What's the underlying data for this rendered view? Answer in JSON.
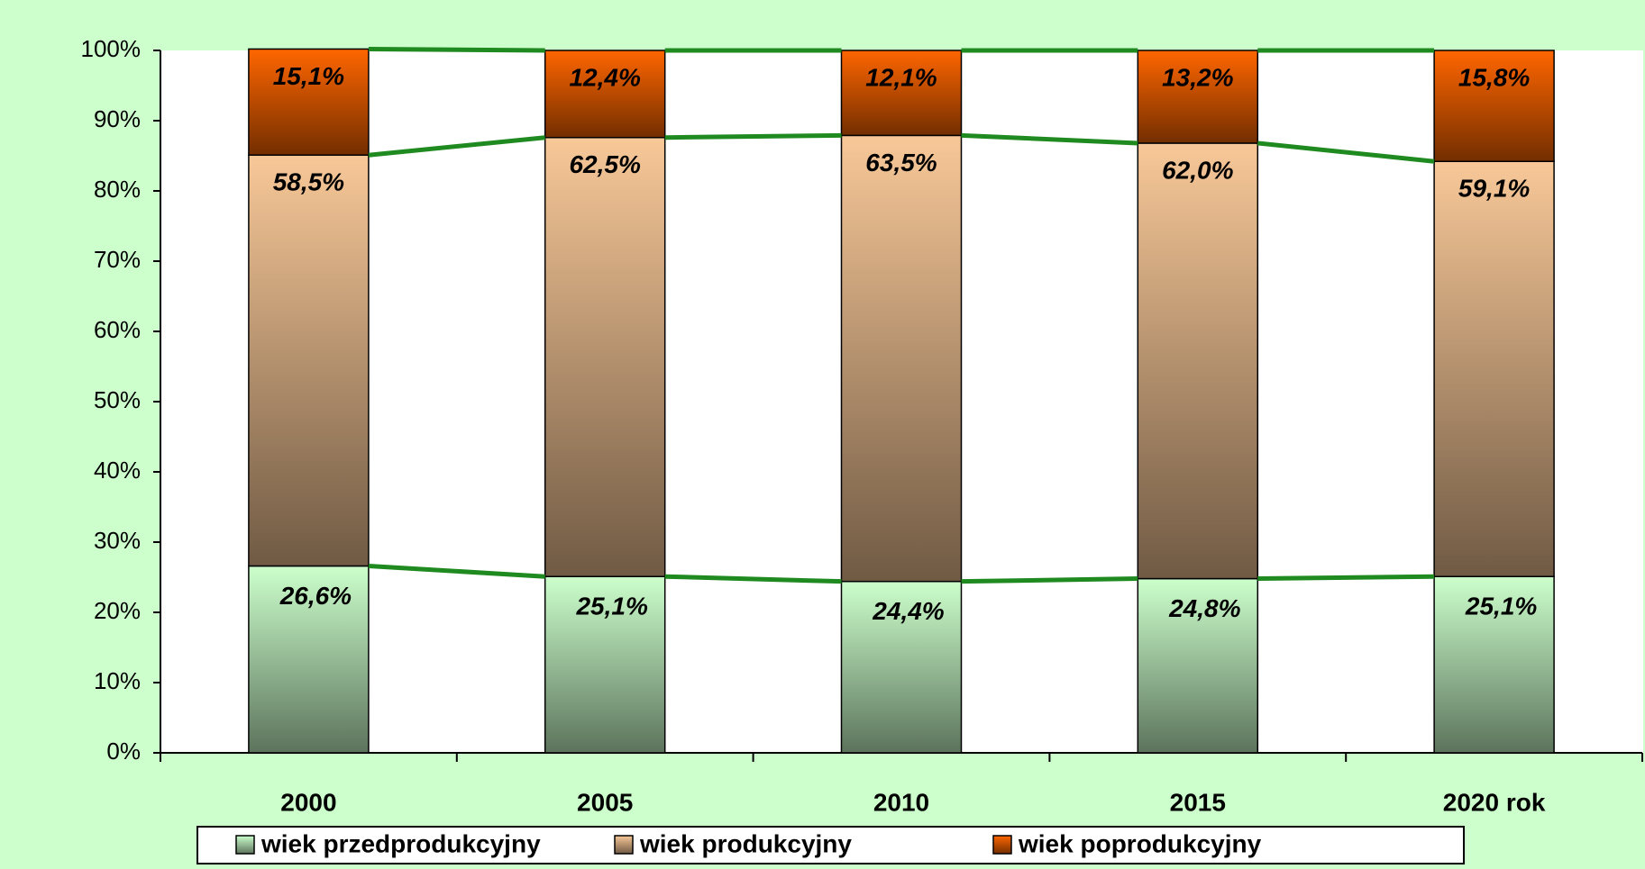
{
  "chart_data": {
    "type": "stacked_bar",
    "categories": [
      "2000",
      "2005",
      "2010",
      "2015",
      "2020 rok"
    ],
    "series": [
      {
        "name": "wiek przedprodukcyjny",
        "color": "#ccffcc",
        "values": [
          26.6,
          25.1,
          24.4,
          24.8,
          25.1
        ],
        "value_labels": [
          "26,6%",
          "25,1%",
          "24,4%",
          "24,8%",
          "25,1%"
        ]
      },
      {
        "name": "wiek produkcyjny",
        "color": "#f8c898",
        "values": [
          58.5,
          62.5,
          63.5,
          62.0,
          59.1
        ],
        "value_labels": [
          "58,5%",
          "62,5%",
          "63,5%",
          "62,0%",
          "59,1%"
        ]
      },
      {
        "name": "wiek poprodukcyjny",
        "color": "#ff6600",
        "values": [
          15.1,
          12.4,
          12.1,
          13.2,
          15.8
        ],
        "value_labels": [
          "15,1%",
          "12,4%",
          "12,1%",
          "13,2%",
          "15,8%"
        ]
      }
    ],
    "ylim": [
      0,
      100
    ],
    "yticks": [
      {
        "value": 0,
        "label": "0%"
      },
      {
        "value": 10,
        "label": "10%"
      },
      {
        "value": 20,
        "label": "20%"
      },
      {
        "value": 30,
        "label": "30%"
      },
      {
        "value": 40,
        "label": "40%"
      },
      {
        "value": 50,
        "label": "50%"
      },
      {
        "value": 60,
        "label": "60%"
      },
      {
        "value": 70,
        "label": "70%"
      },
      {
        "value": 80,
        "label": "80%"
      },
      {
        "value": 90,
        "label": "90%"
      },
      {
        "value": 100,
        "label": "100%"
      }
    ],
    "series_lines_color": "#1f8a1f",
    "legend": "bottom"
  }
}
